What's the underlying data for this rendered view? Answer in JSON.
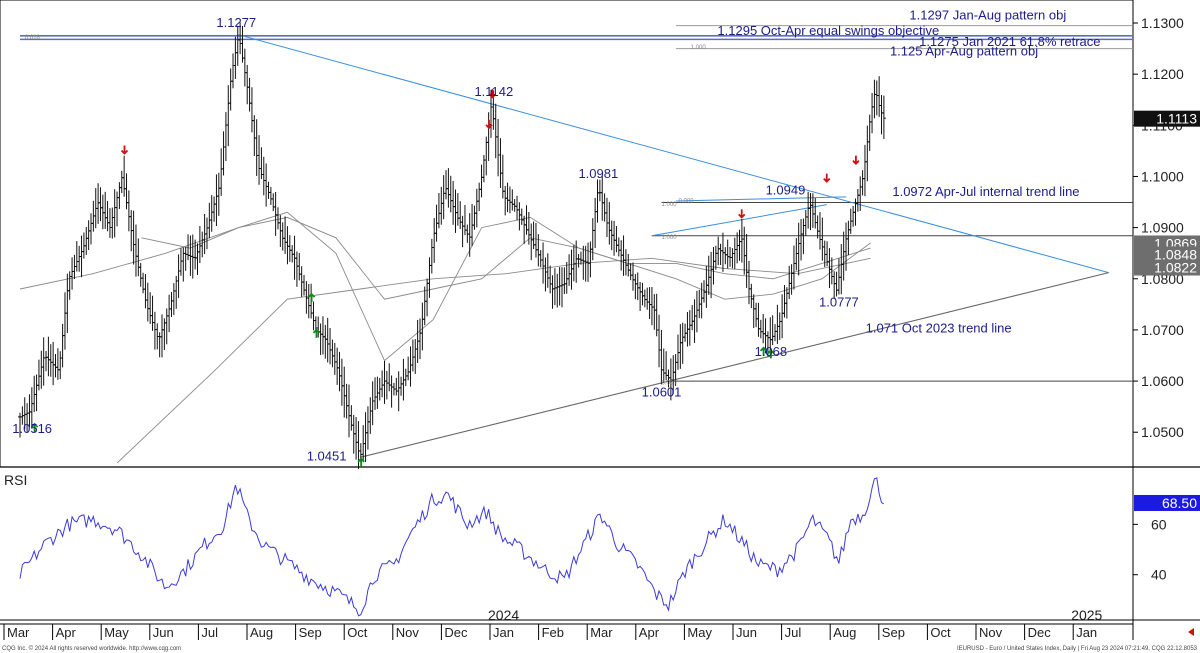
{
  "chart_data": [
    {
      "type": "ohlc",
      "symbol_caption": "IEURUSD - Euro / United States Index, Daily | Fri Aug 23 2024 07:21:49, CQG 22.12.8053",
      "copyright": "CQG Inc. © 2024 All rights reserved worldwide. http://www.cqg.com",
      "y_ticks": [
        "1.1300",
        "1.1200",
        "1.1100",
        "1.1000",
        "1.0900",
        "1.0800",
        "1.0700",
        "1.0600",
        "1.0500"
      ],
      "y_tick_values": [
        1.13,
        1.12,
        1.11,
        1.1,
        1.09,
        1.08,
        1.07,
        1.06,
        1.05
      ],
      "ylim": [
        1.0432,
        1.1345
      ],
      "x_months": [
        "Mar",
        "Apr",
        "May",
        "Jun",
        "Jul",
        "Aug",
        "Sep",
        "Oct",
        "Nov",
        "Dec",
        "Jan",
        "Feb",
        "Mar",
        "Apr",
        "May",
        "Jun",
        "Jul",
        "Aug",
        "Sep",
        "Oct",
        "Nov",
        "Dec",
        "Jan"
      ],
      "x_month_index": [
        0,
        1,
        2,
        3,
        4,
        5,
        6,
        7,
        8,
        9,
        10,
        11,
        12,
        13,
        14,
        15,
        16,
        17,
        18,
        19,
        20,
        21,
        22
      ],
      "year_labels": [
        {
          "label": "2024",
          "month_index": 10
        },
        {
          "label": "2025",
          "month_index": 22
        }
      ],
      "price_path": [
        [
          0,
          1.053
        ],
        [
          0.2,
          1.054
        ],
        [
          0.5,
          1.065
        ],
        [
          0.8,
          1.062
        ],
        [
          1.0,
          1.08
        ],
        [
          1.3,
          1.086
        ],
        [
          1.6,
          1.095
        ],
        [
          1.85,
          1.09
        ],
        [
          2.1,
          1.1
        ],
        [
          2.35,
          1.086
        ],
        [
          2.6,
          1.075
        ],
        [
          2.85,
          1.068
        ],
        [
          3.1,
          1.075
        ],
        [
          3.35,
          1.085
        ],
        [
          3.6,
          1.084
        ],
        [
          3.85,
          1.09
        ],
        [
          4.1,
          1.098
        ],
        [
          4.35,
          1.12
        ],
        [
          4.5,
          1.1277
        ],
        [
          4.7,
          1.116
        ],
        [
          4.9,
          1.102
        ],
        [
          5.15,
          1.096
        ],
        [
          5.4,
          1.088
        ],
        [
          5.65,
          1.084
        ],
        [
          5.9,
          1.076
        ],
        [
          6.1,
          1.07
        ],
        [
          6.3,
          1.068
        ],
        [
          6.55,
          1.062
        ],
        [
          6.8,
          1.052
        ],
        [
          7.0,
          1.0451
        ],
        [
          7.25,
          1.056
        ],
        [
          7.5,
          1.06
        ],
        [
          7.75,
          1.058
        ],
        [
          8.0,
          1.062
        ],
        [
          8.25,
          1.07
        ],
        [
          8.5,
          1.088
        ],
        [
          8.75,
          1.098
        ],
        [
          9.0,
          1.092
        ],
        [
          9.25,
          1.088
        ],
        [
          9.5,
          1.1
        ],
        [
          9.7,
          1.1142
        ],
        [
          9.95,
          1.096
        ],
        [
          10.2,
          1.094
        ],
        [
          10.45,
          1.089
        ],
        [
          10.7,
          1.084
        ],
        [
          10.95,
          1.078
        ],
        [
          11.2,
          1.079
        ],
        [
          11.45,
          1.084
        ],
        [
          11.7,
          1.083
        ],
        [
          11.9,
          1.0981
        ],
        [
          12.1,
          1.09
        ],
        [
          12.35,
          1.085
        ],
        [
          12.6,
          1.08
        ],
        [
          12.85,
          1.076
        ],
        [
          13.05,
          1.074
        ],
        [
          13.2,
          1.062
        ],
        [
          13.4,
          1.0601
        ],
        [
          13.6,
          1.068
        ],
        [
          13.85,
          1.072
        ],
        [
          14.1,
          1.078
        ],
        [
          14.35,
          1.086
        ],
        [
          14.6,
          1.084
        ],
        [
          14.85,
          1.088
        ],
        [
          15.0,
          1.078
        ],
        [
          15.2,
          1.07
        ],
        [
          15.45,
          1.068
        ],
        [
          15.65,
          1.072
        ],
        [
          15.85,
          1.08
        ],
        [
          16.05,
          1.088
        ],
        [
          16.25,
          1.0949
        ],
        [
          16.45,
          1.088
        ],
        [
          16.65,
          1.082
        ],
        [
          16.8,
          1.0777
        ],
        [
          17.0,
          1.088
        ],
        [
          17.2,
          1.095
        ],
        [
          17.35,
          1.1
        ],
        [
          17.5,
          1.112
        ],
        [
          17.6,
          1.117
        ],
        [
          17.7,
          1.113
        ],
        [
          17.78,
          1.1113
        ]
      ],
      "moving_averages": [
        {
          "name": "",
          "values": [
            [
              0,
              1.078
            ],
            [
              1.5,
              1.081
            ],
            [
              3,
              1.085
            ],
            [
              4.5,
              1.09
            ],
            [
              5.5,
              1.093
            ],
            [
              6.5,
              1.085
            ],
            [
              7.5,
              1.064
            ],
            [
              8.5,
              1.072
            ],
            [
              9.5,
              1.09
            ],
            [
              10.5,
              1.092
            ],
            [
              11.5,
              1.086
            ],
            [
              12.5,
              1.083
            ],
            [
              13.5,
              1.08
            ],
            [
              14.5,
              1.076
            ],
            [
              15.5,
              1.077
            ],
            [
              16.5,
              1.08
            ],
            [
              17.5,
              1.087
            ]
          ]
        },
        {
          "name": "",
          "values": [
            [
              2.5,
              1.088
            ],
            [
              3.5,
              1.086
            ],
            [
              4.5,
              1.09
            ],
            [
              5.5,
              1.092
            ],
            [
              6.5,
              1.088
            ],
            [
              7.5,
              1.076
            ],
            [
              8.5,
              1.078
            ],
            [
              9.5,
              1.08
            ],
            [
              10.5,
              1.088
            ],
            [
              11.5,
              1.086
            ],
            [
              12.5,
              1.083
            ],
            [
              13.5,
              1.083
            ],
            [
              14.5,
              1.081
            ],
            [
              15.5,
              1.08
            ],
            [
              16.5,
              1.083
            ],
            [
              17.5,
              1.086
            ]
          ]
        },
        {
          "name": "",
          "values": [
            [
              2,
              1.044
            ],
            [
              4,
              1.062
            ],
            [
              5.5,
              1.076
            ],
            [
              7,
              1.078
            ],
            [
              8.5,
              1.08
            ],
            [
              10,
              1.081
            ],
            [
              11.5,
              1.083
            ],
            [
              13,
              1.084
            ],
            [
              14.5,
              1.082
            ],
            [
              16,
              1.081
            ],
            [
              17.5,
              1.084
            ]
          ]
        }
      ],
      "horizontal_levels": [
        {
          "value": 1.0949,
          "from_month": 13.2
        },
        {
          "value": 1.0884,
          "from_month": 13.0
        },
        {
          "value": 1.06,
          "from_month": 13.3
        },
        {
          "value": 1.1275,
          "from_month": 0
        },
        {
          "value": 1.1268,
          "from_month": 0
        },
        {
          "value": 1.125,
          "from_month": 13.5
        },
        {
          "value": 1.1295,
          "from_month": 13.5
        }
      ],
      "trend_lines": [
        {
          "label": "",
          "from": [
            4.5,
            1.1277
          ],
          "to": [
            22.4,
            1.0812
          ]
        },
        {
          "label": "",
          "from": [
            7.0,
            1.0451
          ],
          "to": [
            22.4,
            1.0812
          ]
        },
        {
          "label": "",
          "from": [
            13.0,
            1.0884
          ],
          "to": [
            16.6,
            1.0945
          ]
        },
        {
          "label": "",
          "from": [
            13.5,
            1.0952
          ],
          "to": [
            17.0,
            1.096
          ]
        }
      ],
      "point_labels": [
        {
          "text": "1.1277",
          "month": 4.45,
          "price": 1.1277,
          "pos": "above"
        },
        {
          "text": "1.1142",
          "month": 9.75,
          "price": 1.1142,
          "pos": "above"
        },
        {
          "text": "1.0981",
          "month": 11.9,
          "price": 1.0981,
          "pos": "above"
        },
        {
          "text": "1.0949",
          "month": 15.75,
          "price": 1.0949,
          "pos": "above"
        },
        {
          "text": "1.0777",
          "month": 16.85,
          "price": 1.0777,
          "pos": "below"
        },
        {
          "text": "1.068",
          "month": 15.45,
          "price": 1.068,
          "pos": "below"
        },
        {
          "text": "1.0601",
          "month": 13.2,
          "price": 1.0601,
          "pos": "below"
        },
        {
          "text": "1.0451",
          "month": 6.8,
          "price": 1.0451,
          "pos": "left"
        },
        {
          "text": "1.0516",
          "month": 0.25,
          "price": 1.053,
          "pos": "below"
        }
      ],
      "annotations": [
        {
          "text": "1.1297 Jan-Aug pattern obj",
          "month": 18.3,
          "price": 1.1317
        },
        {
          "text": "1.1295 Oct-Apr equal swings objective",
          "month": 14.35,
          "price": 1.1286
        },
        {
          "text": "1.1275 Jan 2021 61.8% retrace",
          "month": 18.5,
          "price": 1.1265
        },
        {
          "text": "1.125 Apr-Aug pattern obj",
          "month": 17.9,
          "price": 1.1246
        },
        {
          "text": "1.0972 Apr-Jul internal trend line",
          "month": 17.95,
          "price": 1.0972
        },
        {
          "text": "1.071 Oct 2023 trend line",
          "month": 17.4,
          "price": 1.0705
        }
      ],
      "fib_labels": [
        {
          "text": "0.618",
          "month": 0.1,
          "price": 1.1273
        },
        {
          "text": "1.000",
          "month": 13.8,
          "price": 1.1253
        },
        {
          "text": "1.000",
          "month": 13.2,
          "price": 1.0946
        },
        {
          "text": "1.000",
          "month": 13.2,
          "price": 1.0882
        },
        {
          "text": "0.000",
          "month": 13.2,
          "price": 1.0597
        },
        {
          "text": "0.000",
          "month": 13.55,
          "price": 1.0953
        }
      ],
      "down_arrows": [
        [
          2.15,
          1.1045
        ],
        [
          9.72,
          1.1155
        ],
        [
          9.65,
          1.1095
        ],
        [
          14.85,
          1.092
        ],
        [
          16.6,
          1.099
        ],
        [
          17.2,
          1.1025
        ]
      ],
      "up_arrows": [
        [
          0.3,
          1.0516
        ],
        [
          6.0,
          1.077
        ],
        [
          6.1,
          1.07
        ],
        [
          7.02,
          1.0448
        ],
        [
          15.3,
          1.0665
        ],
        [
          15.45,
          1.066
        ]
      ],
      "price_boxes": [
        {
          "text": "1.1113",
          "value": 1.1113,
          "style": "dark"
        },
        {
          "text": "1.0869",
          "value": 1.0869,
          "style": "grey"
        },
        {
          "text": "1.0848",
          "value": 1.0848,
          "style": "grey"
        },
        {
          "text": "1.0822",
          "value": 1.0822,
          "style": "grey"
        }
      ]
    },
    {
      "type": "line",
      "label": "RSI",
      "y_ticks": [
        "60",
        "40"
      ],
      "y_tick_values": [
        60,
        40
      ],
      "ylim": [
        22,
        82
      ],
      "current": "68.50",
      "current_value": 68.5,
      "values": [
        [
          0,
          40
        ],
        [
          0.5,
          52
        ],
        [
          1.0,
          60
        ],
        [
          1.5,
          62
        ],
        [
          2.0,
          58
        ],
        [
          2.5,
          48
        ],
        [
          3.0,
          35
        ],
        [
          3.4,
          42
        ],
        [
          3.8,
          52
        ],
        [
          4.2,
          60
        ],
        [
          4.45,
          76
        ],
        [
          4.7,
          62
        ],
        [
          5.0,
          52
        ],
        [
          5.5,
          45
        ],
        [
          6.0,
          38
        ],
        [
          6.5,
          33
        ],
        [
          7.0,
          26
        ],
        [
          7.3,
          40
        ],
        [
          7.7,
          44
        ],
        [
          8.0,
          55
        ],
        [
          8.5,
          70
        ],
        [
          8.8,
          72
        ],
        [
          9.2,
          60
        ],
        [
          9.6,
          65
        ],
        [
          9.9,
          55
        ],
        [
          10.3,
          50
        ],
        [
          10.8,
          42
        ],
        [
          11.2,
          38
        ],
        [
          11.6,
          52
        ],
        [
          11.95,
          64
        ],
        [
          12.3,
          52
        ],
        [
          12.7,
          44
        ],
        [
          13.1,
          32
        ],
        [
          13.35,
          28
        ],
        [
          13.7,
          42
        ],
        [
          14.2,
          55
        ],
        [
          14.5,
          62
        ],
        [
          14.9,
          52
        ],
        [
          15.2,
          44
        ],
        [
          15.6,
          42
        ],
        [
          16.0,
          50
        ],
        [
          16.3,
          62
        ],
        [
          16.6,
          55
        ],
        [
          16.85,
          45
        ],
        [
          17.1,
          62
        ],
        [
          17.35,
          64
        ],
        [
          17.6,
          78
        ],
        [
          17.78,
          68.5
        ]
      ]
    }
  ]
}
